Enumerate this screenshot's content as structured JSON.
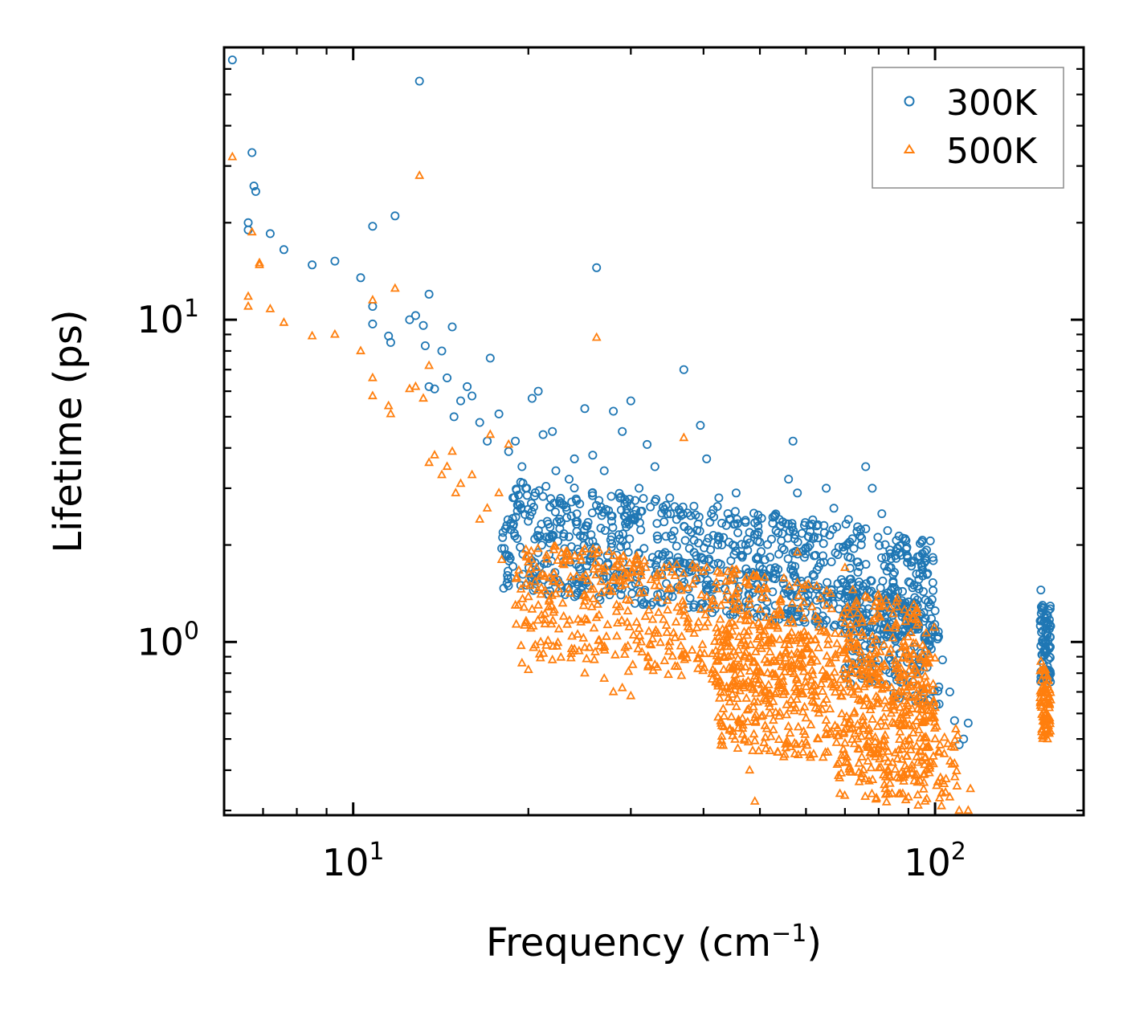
{
  "chart_data": {
    "type": "scatter",
    "title": "",
    "xlabel": "Frequency (cm",
    "xlabel_sup": "−1",
    "xlabel_close": ")",
    "ylabel": "Lifetime (ps)",
    "xscale": "log",
    "yscale": "log",
    "xlim": [
      6.0,
      180.0
    ],
    "ylim": [
      0.29,
      70.0
    ],
    "x_ticks": [
      {
        "value": 10,
        "base": "10",
        "exp": "1"
      },
      {
        "value": 100,
        "base": "10",
        "exp": "2"
      }
    ],
    "y_ticks": [
      {
        "value": 1,
        "base": "10",
        "exp": "0"
      },
      {
        "value": 10,
        "base": "10",
        "exp": "1"
      }
    ],
    "legend_position": "top-right",
    "series": [
      {
        "name": "300K",
        "marker": "circle",
        "color": "#1f77b4",
        "points": [
          [
            6.2,
            64
          ],
          [
            6.7,
            33
          ],
          [
            6.75,
            26
          ],
          [
            6.8,
            25
          ],
          [
            6.6,
            20
          ],
          [
            6.6,
            19
          ],
          [
            7.2,
            18.5
          ],
          [
            7.6,
            16.5
          ],
          [
            8.5,
            14.8
          ],
          [
            9.3,
            15.2
          ],
          [
            10.3,
            13.5
          ],
          [
            10.8,
            19.5
          ],
          [
            10.8,
            11
          ],
          [
            10.8,
            9.7
          ],
          [
            11.5,
            8.9
          ],
          [
            11.6,
            8.5
          ],
          [
            11.8,
            21
          ],
          [
            12.5,
            10
          ],
          [
            12.8,
            10.3
          ],
          [
            13.0,
            55
          ],
          [
            13.2,
            9.6
          ],
          [
            13.5,
            12
          ],
          [
            13.3,
            8.3
          ],
          [
            13.5,
            6.2
          ],
          [
            13.8,
            6.1
          ],
          [
            14.2,
            8.0
          ],
          [
            14.5,
            6.6
          ],
          [
            14.8,
            9.5
          ],
          [
            14.9,
            5.0
          ],
          [
            15.3,
            5.6
          ],
          [
            15.7,
            6.2
          ],
          [
            16.0,
            5.8
          ],
          [
            16.5,
            4.8
          ],
          [
            17.0,
            4.2
          ],
          [
            17.2,
            7.6
          ],
          [
            17.8,
            5.1
          ],
          [
            18.0,
            1.95
          ],
          [
            18.5,
            3.9
          ],
          [
            19.0,
            4.2
          ],
          [
            19.5,
            3.5
          ],
          [
            19.8,
            3.0
          ],
          [
            20.3,
            5.7
          ],
          [
            20.8,
            6.0
          ],
          [
            21.2,
            4.4
          ],
          [
            22.0,
            4.5
          ],
          [
            22.3,
            3.4
          ],
          [
            23.5,
            3.2
          ],
          [
            24.0,
            3.7
          ],
          [
            25.0,
            5.3
          ],
          [
            25.8,
            3.8
          ],
          [
            26.2,
            14.5
          ],
          [
            27.0,
            3.4
          ],
          [
            28.0,
            5.2
          ],
          [
            29.0,
            4.5
          ],
          [
            30.0,
            5.6
          ],
          [
            31.0,
            3.0
          ],
          [
            32.0,
            4.1
          ],
          [
            33.0,
            3.5
          ],
          [
            35.0,
            2.8
          ],
          [
            37.0,
            7.0
          ],
          [
            39.5,
            4.7
          ],
          [
            40.5,
            3.7
          ],
          [
            42.5,
            2.8
          ],
          [
            43.0,
            2.0
          ],
          [
            45.5,
            2.9
          ],
          [
            48.0,
            1.6
          ],
          [
            51.0,
            1.8
          ],
          [
            54.0,
            2.4
          ],
          [
            56.0,
            3.2
          ],
          [
            57.0,
            4.2
          ],
          [
            58.0,
            2.9
          ],
          [
            61.0,
            2.2
          ],
          [
            65.0,
            3.0
          ],
          [
            67.0,
            2.6
          ],
          [
            71.0,
            2.4
          ],
          [
            76.0,
            3.5
          ],
          [
            78.0,
            3.0
          ],
          [
            81.0,
            2.5
          ],
          [
            84.0,
            1.7
          ],
          [
            88.0,
            2.1
          ],
          [
            92.0,
            1.5
          ],
          [
            96.0,
            1.9
          ],
          [
            100.0,
            1.25
          ],
          [
            103.0,
            0.88
          ],
          [
            106.0,
            0.7
          ],
          [
            108.0,
            0.57
          ],
          [
            110.0,
            0.48
          ],
          [
            112.0,
            0.5
          ],
          [
            114.0,
            0.56
          ],
          [
            152.0,
            1.45
          ],
          [
            153.0,
            1.3
          ],
          [
            154.0,
            1.2
          ],
          [
            154.5,
            1.0
          ],
          [
            155.0,
            0.93
          ],
          [
            155.5,
            1.1
          ],
          [
            156.0,
            0.84
          ],
          [
            157.0,
            0.97
          ],
          [
            158.0,
            1.12
          ]
        ]
      },
      {
        "name": "500K",
        "marker": "triangle",
        "color": "#ff7f0e",
        "points": [
          [
            6.2,
            32
          ],
          [
            6.7,
            18.7
          ],
          [
            6.9,
            15
          ],
          [
            6.9,
            14.8
          ],
          [
            6.6,
            11.8
          ],
          [
            6.6,
            11
          ],
          [
            7.2,
            10.8
          ],
          [
            7.6,
            9.8
          ],
          [
            8.5,
            8.9
          ],
          [
            9.3,
            9.0
          ],
          [
            10.3,
            8.0
          ],
          [
            10.8,
            11.5
          ],
          [
            10.8,
            6.6
          ],
          [
            10.8,
            5.8
          ],
          [
            11.5,
            5.4
          ],
          [
            11.6,
            5.1
          ],
          [
            11.8,
            12.5
          ],
          [
            12.5,
            6.1
          ],
          [
            12.8,
            6.2
          ],
          [
            13.0,
            28
          ],
          [
            13.2,
            5.7
          ],
          [
            13.5,
            7.2
          ],
          [
            13.5,
            3.6
          ],
          [
            13.8,
            3.8
          ],
          [
            14.2,
            3.3
          ],
          [
            14.5,
            3.5
          ],
          [
            14.8,
            3.9
          ],
          [
            15.0,
            2.9
          ],
          [
            15.3,
            3.1
          ],
          [
            16.0,
            3.3
          ],
          [
            16.5,
            2.4
          ],
          [
            17.0,
            2.6
          ],
          [
            17.2,
            4.4
          ],
          [
            17.8,
            2.9
          ],
          [
            18.0,
            1.8
          ],
          [
            18.5,
            4.1
          ],
          [
            19.0,
            1.3
          ],
          [
            19.5,
            0.86
          ],
          [
            20.0,
            0.82
          ],
          [
            20.8,
            1.3
          ],
          [
            21.0,
            1.0
          ],
          [
            22.0,
            0.88
          ],
          [
            23.0,
            1.2
          ],
          [
            24.0,
            0.95
          ],
          [
            25.0,
            0.8
          ],
          [
            26.2,
            8.8
          ],
          [
            27.0,
            0.77
          ],
          [
            28.0,
            0.7
          ],
          [
            29.0,
            0.72
          ],
          [
            30.0,
            0.68
          ],
          [
            31.0,
            1.1
          ],
          [
            33.0,
            0.85
          ],
          [
            35.0,
            1.0
          ],
          [
            37.0,
            4.3
          ],
          [
            39.0,
            1.7
          ],
          [
            42.0,
            0.75
          ],
          [
            45.0,
            0.85
          ],
          [
            47.0,
            0.5
          ],
          [
            48.0,
            0.4
          ],
          [
            49.0,
            0.32
          ],
          [
            52.0,
            0.6
          ],
          [
            55.0,
            0.7
          ],
          [
            58.0,
            1.9
          ],
          [
            60.0,
            0.58
          ],
          [
            63.0,
            0.5
          ],
          [
            65.0,
            0.52
          ],
          [
            68.0,
            0.54
          ],
          [
            70.0,
            1.7
          ],
          [
            74.0,
            0.42
          ],
          [
            77.0,
            0.37
          ],
          [
            80.0,
            0.45
          ],
          [
            83.0,
            0.4
          ],
          [
            86.0,
            0.38
          ],
          [
            90.0,
            0.33
          ],
          [
            93.0,
            0.44
          ],
          [
            97.0,
            0.47
          ],
          [
            100.0,
            0.5
          ],
          [
            103.0,
            0.37
          ],
          [
            106.0,
            0.33
          ],
          [
            108.0,
            0.42
          ],
          [
            110.0,
            0.3
          ],
          [
            114.0,
            0.3
          ],
          [
            115.0,
            0.35
          ],
          [
            152.0,
            0.87
          ],
          [
            153.0,
            0.82
          ],
          [
            154.0,
            0.72
          ],
          [
            154.5,
            0.65
          ],
          [
            155.0,
            0.6
          ],
          [
            155.5,
            0.55
          ],
          [
            156.0,
            0.5
          ],
          [
            157.0,
            0.58
          ],
          [
            158.0,
            0.66
          ]
        ]
      }
    ],
    "clusters": [
      {
        "series": "300K",
        "count": 900,
        "x": [
          18,
          100
        ],
        "y_start": [
          1.45,
          3.2
        ],
        "y_end": [
          1.0,
          2.1
        ]
      },
      {
        "series": "300K",
        "count": 200,
        "x": [
          70,
          102
        ],
        "y_start": [
          0.75,
          1.6
        ],
        "y_end": [
          0.6,
          1.2
        ]
      },
      {
        "series": "300K",
        "count": 70,
        "x": [
          151.5,
          158
        ],
        "y_start": [
          0.75,
          1.3
        ],
        "y_end": [
          0.75,
          1.3
        ]
      },
      {
        "series": "500K",
        "count": 700,
        "x": [
          19,
          100
        ],
        "y_start": [
          0.9,
          2.1
        ],
        "y_end": [
          0.55,
          1.3
        ]
      },
      {
        "series": "500K",
        "count": 500,
        "x": [
          42,
          100
        ],
        "y_start": [
          0.48,
          1.2
        ],
        "y_end": [
          0.34,
          0.95
        ]
      },
      {
        "series": "500K",
        "count": 120,
        "x": [
          68,
          110
        ],
        "y_start": [
          0.33,
          0.6
        ],
        "y_end": [
          0.3,
          0.55
        ]
      },
      {
        "series": "500K",
        "count": 70,
        "x": [
          151.5,
          158
        ],
        "y_start": [
          0.5,
          0.82
        ],
        "y_end": [
          0.5,
          0.82
        ]
      }
    ]
  }
}
